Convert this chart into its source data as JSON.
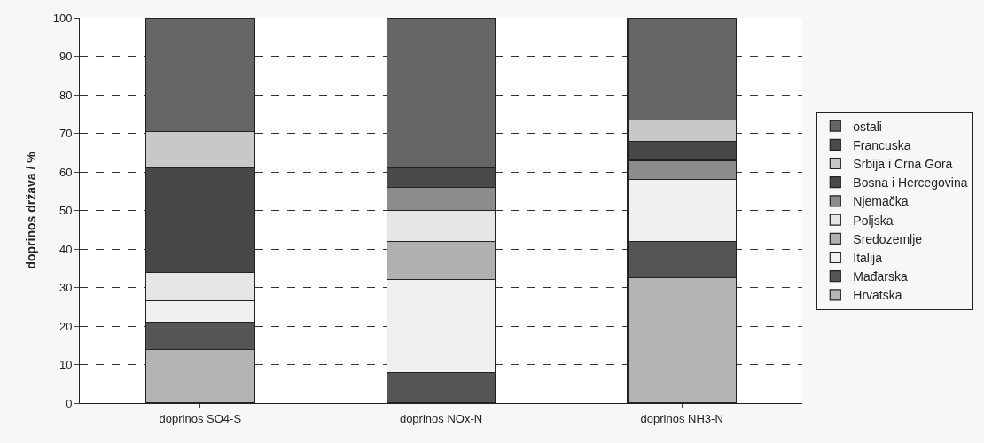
{
  "chart_data": {
    "type": "bar",
    "stacked": true,
    "ylabel": "doprinos država / %",
    "categories": [
      "doprinos SO4-S",
      "doprinos NOx-N",
      "doprinos NH3-N"
    ],
    "ylim": [
      0,
      100
    ],
    "yticks": [
      0,
      10,
      20,
      30,
      40,
      50,
      60,
      70,
      80,
      90,
      100
    ],
    "grid": "y",
    "legend": "right",
    "series": [
      {
        "name": "Hrvatska",
        "color": "#b4b4b4",
        "values": [
          14,
          0,
          32.5
        ]
      },
      {
        "name": "Mađarska",
        "color": "#555555",
        "values": [
          7,
          8,
          9.5
        ]
      },
      {
        "name": "Italija",
        "color": "#f0f0f0",
        "values": [
          5.5,
          24,
          16
        ]
      },
      {
        "name": "Sredozemlje",
        "color": "#b0b0b0",
        "values": [
          0,
          10,
          0
        ]
      },
      {
        "name": "Poljska",
        "color": "#e6e6e6",
        "values": [
          7.5,
          8,
          0
        ]
      },
      {
        "name": "Njemačka",
        "color": "#8c8c8c",
        "values": [
          0,
          6,
          5
        ]
      },
      {
        "name": "Bosna i Hercegovina",
        "color": "#484848",
        "values": [
          27,
          0,
          5
        ]
      },
      {
        "name": "Srbija i Crna Gora",
        "color": "#c8c8c8",
        "values": [
          9.5,
          0,
          5.5
        ]
      },
      {
        "name": "Francuska",
        "color": "#4a4a4a",
        "values": [
          0,
          5,
          0
        ]
      },
      {
        "name": "ostali",
        "color": "#666666",
        "values": [
          29.5,
          39,
          26.5
        ]
      }
    ]
  }
}
